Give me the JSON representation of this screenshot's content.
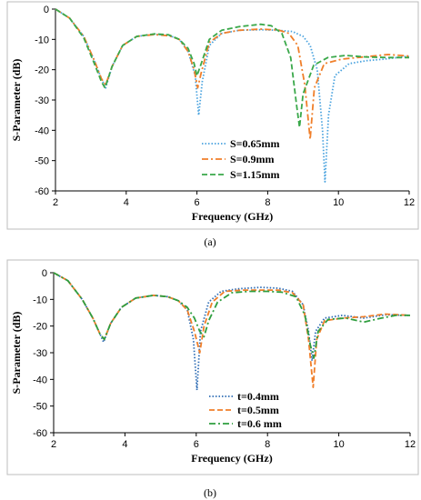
{
  "chart_data": [
    {
      "type": "line",
      "caption": "(a)",
      "xlabel": "Frequency (GHz)",
      "ylabel": "S-Parameter (dB)",
      "xlim": [
        2,
        12
      ],
      "ylim": [
        -60,
        0
      ],
      "xticks": [
        "2",
        "4",
        "6",
        "8",
        "10",
        "12"
      ],
      "yticks": [
        "0",
        "-10",
        "-20",
        "-30",
        "-40",
        "-50",
        "-60"
      ],
      "legend_position": "bottom-center",
      "series": [
        {
          "name": "S=0.65mm",
          "color": "#4aa3df",
          "dash": "dotted",
          "points": [
            [
              2,
              0
            ],
            [
              2.4,
              -3
            ],
            [
              2.8,
              -9
            ],
            [
              3.1,
              -17
            ],
            [
              3.3,
              -23
            ],
            [
              3.42,
              -26
            ],
            [
              3.6,
              -19
            ],
            [
              3.9,
              -12
            ],
            [
              4.3,
              -9
            ],
            [
              4.8,
              -8.3
            ],
            [
              5.2,
              -8.6
            ],
            [
              5.5,
              -10
            ],
            [
              5.75,
              -14
            ],
            [
              5.95,
              -22
            ],
            [
              6.05,
              -35
            ],
            [
              6.15,
              -24
            ],
            [
              6.35,
              -12
            ],
            [
              6.7,
              -8
            ],
            [
              7.2,
              -7
            ],
            [
              7.8,
              -6.8
            ],
            [
              8.3,
              -7
            ],
            [
              8.7,
              -7.4
            ],
            [
              9.0,
              -9
            ],
            [
              9.2,
              -12
            ],
            [
              9.4,
              -20
            ],
            [
              9.55,
              -40
            ],
            [
              9.62,
              -57
            ],
            [
              9.72,
              -35
            ],
            [
              9.9,
              -22
            ],
            [
              10.3,
              -18
            ],
            [
              10.8,
              -17
            ],
            [
              11.3,
              -16.5
            ],
            [
              12,
              -15.5
            ]
          ]
        },
        {
          "name": "S=0.9mm",
          "color": "#f07f2a",
          "dash": "dashdot",
          "points": [
            [
              2,
              0
            ],
            [
              2.4,
              -3
            ],
            [
              2.8,
              -9
            ],
            [
              3.1,
              -17
            ],
            [
              3.3,
              -23
            ],
            [
              3.42,
              -25
            ],
            [
              3.6,
              -19
            ],
            [
              3.9,
              -12
            ],
            [
              4.3,
              -9
            ],
            [
              4.8,
              -8.4
            ],
            [
              5.2,
              -8.8
            ],
            [
              5.5,
              -10
            ],
            [
              5.75,
              -14
            ],
            [
              5.92,
              -20
            ],
            [
              6.02,
              -26
            ],
            [
              6.12,
              -21
            ],
            [
              6.35,
              -11
            ],
            [
              6.7,
              -8
            ],
            [
              7.2,
              -7
            ],
            [
              7.8,
              -6.6
            ],
            [
              8.3,
              -6.9
            ],
            [
              8.6,
              -8
            ],
            [
              8.85,
              -12
            ],
            [
              9.05,
              -25
            ],
            [
              9.2,
              -43
            ],
            [
              9.32,
              -26
            ],
            [
              9.6,
              -18
            ],
            [
              10.1,
              -16.5
            ],
            [
              10.7,
              -15.8
            ],
            [
              11.4,
              -15
            ],
            [
              12,
              -15.5
            ]
          ]
        },
        {
          "name": "S=1.15mm",
          "color": "#3aa84a",
          "dash": "dashed",
          "points": [
            [
              2,
              0
            ],
            [
              2.4,
              -3
            ],
            [
              2.8,
              -9.5
            ],
            [
              3.1,
              -18
            ],
            [
              3.3,
              -24
            ],
            [
              3.4,
              -26
            ],
            [
              3.6,
              -19
            ],
            [
              3.9,
              -12
            ],
            [
              4.3,
              -9
            ],
            [
              4.8,
              -8.2
            ],
            [
              5.2,
              -8.5
            ],
            [
              5.5,
              -10
            ],
            [
              5.75,
              -13
            ],
            [
              5.92,
              -18
            ],
            [
              6.0,
              -22
            ],
            [
              6.12,
              -18
            ],
            [
              6.35,
              -10
            ],
            [
              6.7,
              -7
            ],
            [
              7.2,
              -5.8
            ],
            [
              7.8,
              -5
            ],
            [
              8.1,
              -5.5
            ],
            [
              8.4,
              -8
            ],
            [
              8.65,
              -16
            ],
            [
              8.82,
              -32
            ],
            [
              8.9,
              -39
            ],
            [
              9.0,
              -28
            ],
            [
              9.3,
              -18.5
            ],
            [
              9.7,
              -16
            ],
            [
              10.2,
              -15.3
            ],
            [
              10.8,
              -15.8
            ],
            [
              11.4,
              -16
            ],
            [
              12,
              -16
            ]
          ]
        }
      ]
    },
    {
      "type": "line",
      "caption": "(b)",
      "xlabel": "Frequency (GHz)",
      "ylabel": "S-Parameter (dB)",
      "xlim": [
        2,
        12
      ],
      "ylim": [
        -60,
        0
      ],
      "xticks": [
        "2",
        "4",
        "6",
        "8",
        "10",
        "12"
      ],
      "yticks": [
        "0",
        "-10",
        "-20",
        "-30",
        "-40",
        "-50",
        "-60"
      ],
      "legend_position": "bottom-center",
      "series": [
        {
          "name": "t=0.4mm",
          "color": "#2f6db5",
          "dash": "dotted",
          "points": [
            [
              2,
              0
            ],
            [
              2.4,
              -3
            ],
            [
              2.8,
              -10
            ],
            [
              3.1,
              -17
            ],
            [
              3.3,
              -23
            ],
            [
              3.4,
              -26
            ],
            [
              3.6,
              -19
            ],
            [
              3.9,
              -13
            ],
            [
              4.3,
              -9.5
            ],
            [
              4.8,
              -8.5
            ],
            [
              5.2,
              -9
            ],
            [
              5.5,
              -10.5
            ],
            [
              5.75,
              -14
            ],
            [
              5.92,
              -25
            ],
            [
              6.02,
              -44
            ],
            [
              6.12,
              -22
            ],
            [
              6.35,
              -11
            ],
            [
              6.7,
              -7
            ],
            [
              7.2,
              -6
            ],
            [
              7.8,
              -5.5
            ],
            [
              8.3,
              -5.8
            ],
            [
              8.7,
              -7
            ],
            [
              9.0,
              -12
            ],
            [
              9.15,
              -22
            ],
            [
              9.25,
              -33
            ],
            [
              9.35,
              -22
            ],
            [
              9.6,
              -17
            ],
            [
              10.1,
              -16
            ],
            [
              10.7,
              -17
            ],
            [
              11.3,
              -15.8
            ],
            [
              12,
              -16
            ]
          ]
        },
        {
          "name": "t=0.5mm",
          "color": "#f07f2a",
          "dash": "dashed",
          "points": [
            [
              2,
              0
            ],
            [
              2.4,
              -3
            ],
            [
              2.8,
              -10
            ],
            [
              3.1,
              -17
            ],
            [
              3.3,
              -23
            ],
            [
              3.42,
              -25
            ],
            [
              3.6,
              -19
            ],
            [
              3.9,
              -13
            ],
            [
              4.3,
              -9.5
            ],
            [
              4.8,
              -8.5
            ],
            [
              5.2,
              -9
            ],
            [
              5.5,
              -10.5
            ],
            [
              5.75,
              -14
            ],
            [
              5.95,
              -22
            ],
            [
              6.1,
              -30
            ],
            [
              6.22,
              -20
            ],
            [
              6.45,
              -11
            ],
            [
              6.8,
              -7
            ],
            [
              7.3,
              -6.5
            ],
            [
              7.8,
              -6.5
            ],
            [
              8.3,
              -6.5
            ],
            [
              8.7,
              -7.5
            ],
            [
              9.0,
              -12
            ],
            [
              9.15,
              -25
            ],
            [
              9.28,
              -43
            ],
            [
              9.38,
              -25
            ],
            [
              9.6,
              -18
            ],
            [
              10.1,
              -17
            ],
            [
              10.7,
              -16.5
            ],
            [
              11.3,
              -15.5
            ],
            [
              12,
              -16
            ]
          ]
        },
        {
          "name": "t=0.6 mm",
          "color": "#2f9e3f",
          "dash": "dashdot",
          "points": [
            [
              2,
              0
            ],
            [
              2.4,
              -3
            ],
            [
              2.8,
              -10
            ],
            [
              3.1,
              -17
            ],
            [
              3.3,
              -23
            ],
            [
              3.42,
              -25
            ],
            [
              3.6,
              -19
            ],
            [
              3.9,
              -13
            ],
            [
              4.3,
              -9.5
            ],
            [
              4.8,
              -8.5
            ],
            [
              5.2,
              -9
            ],
            [
              5.5,
              -10.5
            ],
            [
              5.75,
              -13
            ],
            [
              5.95,
              -17
            ],
            [
              6.1,
              -22
            ],
            [
              6.22,
              -24
            ],
            [
              6.35,
              -18
            ],
            [
              6.6,
              -11
            ],
            [
              7.0,
              -7.5
            ],
            [
              7.5,
              -7
            ],
            [
              8.0,
              -7
            ],
            [
              8.4,
              -7.3
            ],
            [
              8.8,
              -9
            ],
            [
              9.05,
              -16
            ],
            [
              9.2,
              -27
            ],
            [
              9.3,
              -32
            ],
            [
              9.42,
              -22
            ],
            [
              9.7,
              -17.5
            ],
            [
              10.2,
              -17
            ],
            [
              10.7,
              -18.5
            ],
            [
              11.2,
              -17
            ],
            [
              11.6,
              -16
            ],
            [
              12,
              -16
            ]
          ]
        }
      ]
    }
  ]
}
